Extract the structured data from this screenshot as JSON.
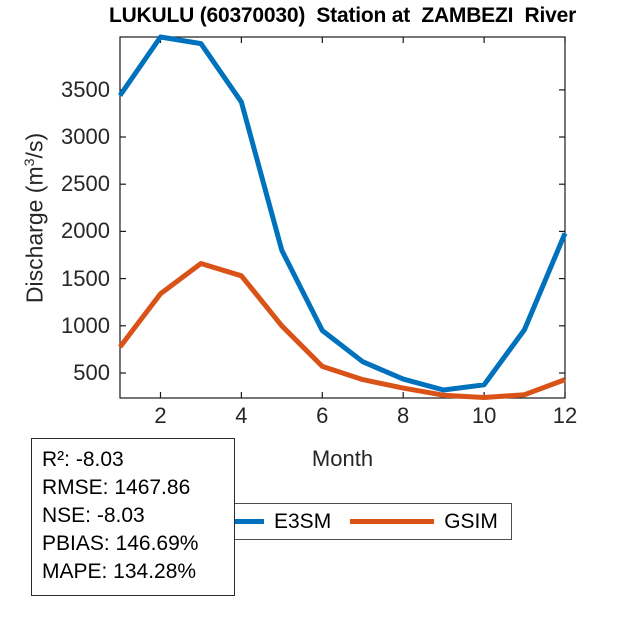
{
  "title": "LUKULU (60370030)  Station at  ZAMBEZI  River",
  "chart_data": {
    "type": "line",
    "x": [
      1,
      2,
      3,
      4,
      5,
      6,
      7,
      8,
      9,
      10,
      11,
      12
    ],
    "series": [
      {
        "name": "E3SM",
        "color": "#0072BD",
        "values": [
          3440,
          4060,
          3990,
          3370,
          1800,
          950,
          620,
          435,
          320,
          375,
          960,
          1980
        ]
      },
      {
        "name": "GSIM",
        "color": "#D95319",
        "values": [
          775,
          1340,
          1660,
          1530,
          1000,
          570,
          430,
          340,
          265,
          240,
          270,
          430
        ]
      }
    ],
    "xlabel": "Month",
    "ylabel": "Discharge (m³/s)",
    "xlim": [
      1,
      12
    ],
    "ylim": [
      235,
      4060
    ],
    "xticks": [
      2,
      4,
      6,
      8,
      10,
      12
    ],
    "yticks": [
      500,
      1000,
      1500,
      2000,
      2500,
      3000,
      3500
    ],
    "grid": false,
    "legend_position": "below plot, horizontal"
  },
  "ylabel_parts": {
    "pre": "Discharge (m",
    "sup": "3",
    "post": "/s)"
  },
  "stats": {
    "lines": [
      "R²: -8.03",
      "RMSE: 1467.86",
      "NSE: -8.03",
      "PBIAS: 146.69%",
      "MAPE: 134.28%"
    ]
  }
}
